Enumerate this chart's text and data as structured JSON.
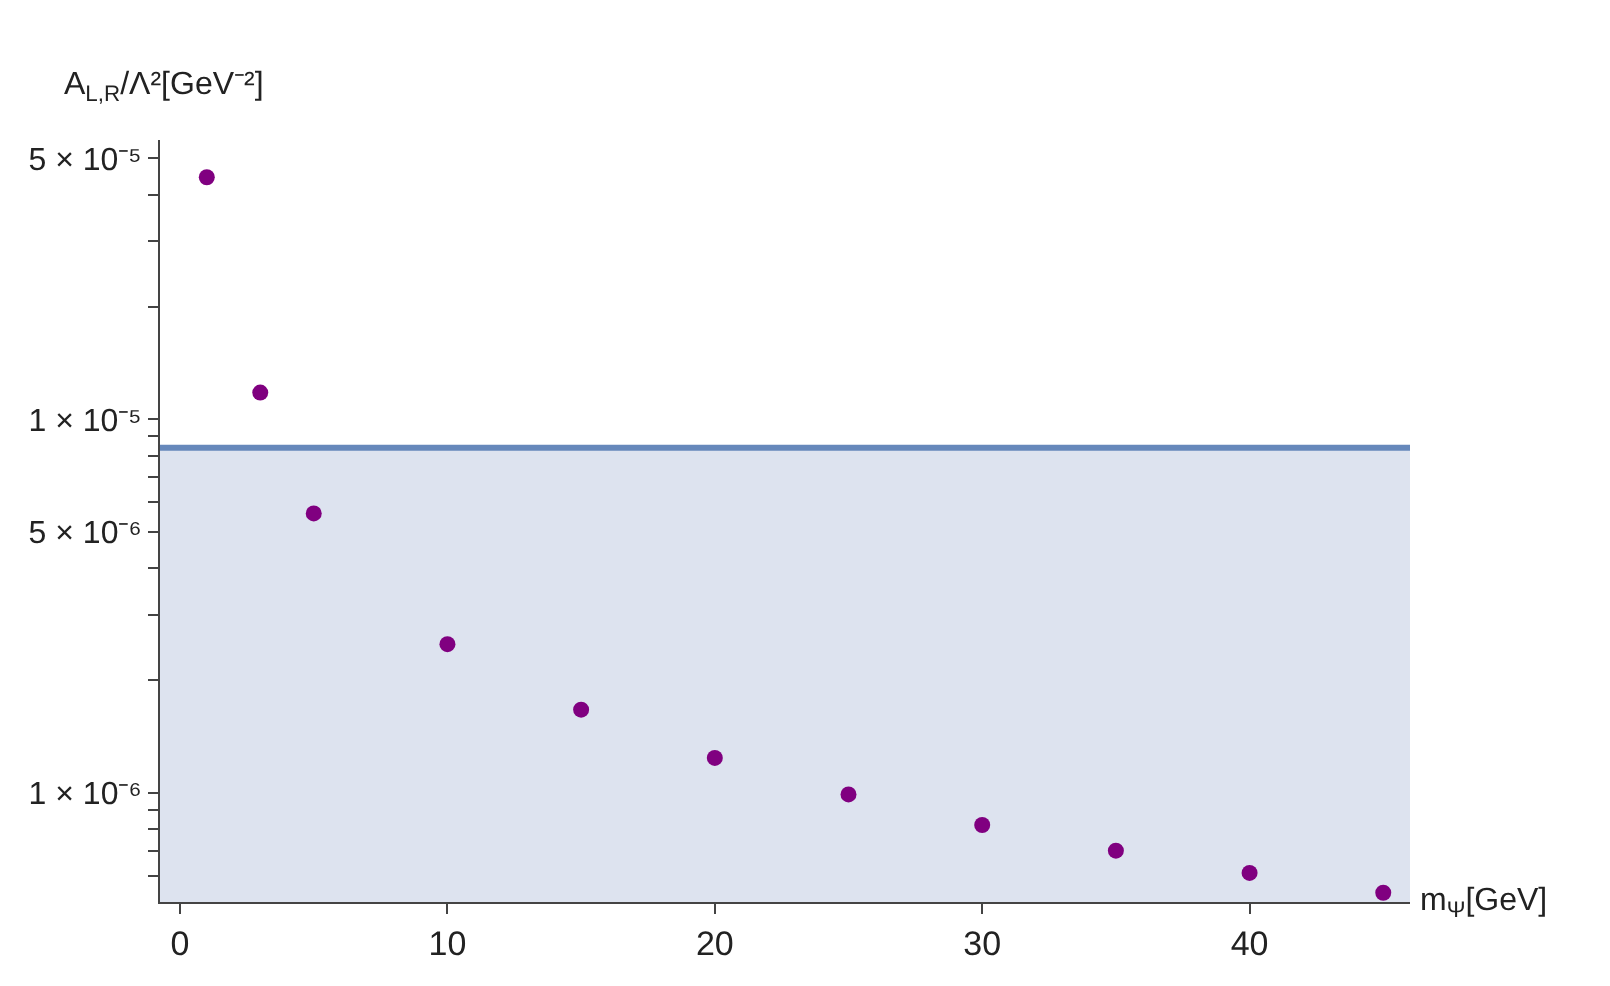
{
  "chart_data": {
    "type": "scatter",
    "xlabel": "m$_{Ψ}$[GeV]",
    "ylabel": "A$_{L,R}$/Λ²[GeV⁻²]",
    "x": [
      1,
      3,
      5,
      10,
      15,
      20,
      25,
      30,
      35,
      40,
      45
    ],
    "series": [
      {
        "color": "#800080",
        "values": [
          4.45e-05,
          1.18e-05,
          5.6e-06,
          2.5e-06,
          1.67e-06,
          1.24e-06,
          9.9e-07,
          8.2e-07,
          7e-07,
          6.1e-07,
          5.4e-07
        ]
      }
    ],
    "log": "y",
    "marker": "circle",
    "grid": false,
    "xlim": [
      -0.75,
      46
    ],
    "xticks": [
      0,
      10,
      20,
      30,
      40
    ],
    "ylim": [
      5.1e-07,
      5.6e-05
    ],
    "yticks": [
      {
        "value": 6e-07,
        "label": null
      },
      {
        "value": 7e-07,
        "label": null
      },
      {
        "value": 8e-07,
        "label": null
      },
      {
        "value": 9e-07,
        "label": null
      },
      {
        "value": 1e-06,
        "label": "1 × 10⁻⁶"
      },
      {
        "value": 2e-06,
        "label": null
      },
      {
        "value": 3e-06,
        "label": null
      },
      {
        "value": 4e-06,
        "label": null
      },
      {
        "value": 5e-06,
        "label": "5 × 10⁻⁶"
      },
      {
        "value": 6e-06,
        "label": null
      },
      {
        "value": 7e-06,
        "label": null
      },
      {
        "value": 8e-06,
        "label": null
      },
      {
        "value": 9e-06,
        "label": null
      },
      {
        "value": 1e-05,
        "label": "1 × 10⁻⁵"
      },
      {
        "value": 2e-05,
        "label": null
      },
      {
        "value": 3e-05,
        "label": null
      },
      {
        "value": 4e-05,
        "label": null
      },
      {
        "value": 5e-05,
        "label": "5 × 10⁻⁵"
      }
    ],
    "bands": [
      {
        "axis": "y",
        "from": 5.1e-07,
        "to": 8.4e-06,
        "color": "#dde3ef"
      }
    ],
    "ref_lines": [
      {
        "axis": "y",
        "value": 8.4e-06,
        "color": "#6688bb"
      }
    ]
  }
}
